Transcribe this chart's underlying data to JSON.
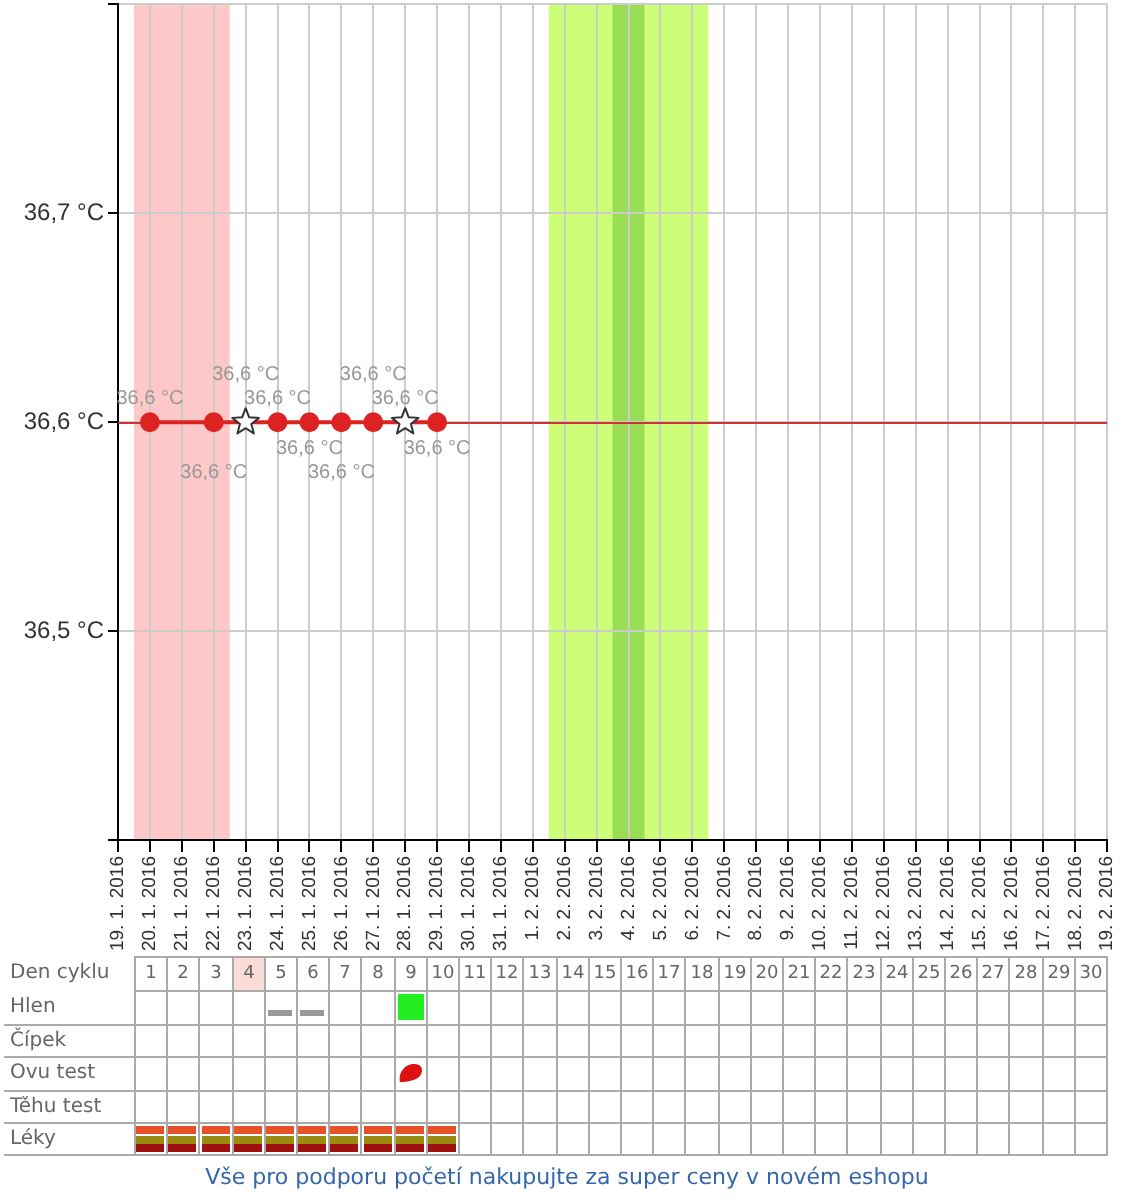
{
  "chart_data": [
    {
      "type": "line",
      "categories": [
        "19. 1. 2016",
        "20. 1. 2016",
        "21. 1. 2016",
        "22. 1. 2016",
        "23. 1. 2016",
        "24. 1. 2016",
        "25. 1. 2016",
        "26. 1. 2016",
        "27. 1. 2016",
        "28. 1. 2016",
        "29. 1. 2016",
        "30. 1. 2016",
        "31. 1. 2016",
        "1. 2. 2016",
        "2. 2. 2016",
        "3. 2. 2016",
        "4. 2. 2016",
        "5. 2. 2016",
        "6. 2. 2016",
        "7. 2. 2016",
        "8. 2. 2016",
        "9. 2. 2016",
        "10. 2. 2016",
        "11. 2. 2016",
        "12. 2. 2016",
        "13. 2. 2016",
        "14. 2. 2016",
        "15. 2. 2016",
        "16. 2. 2016",
        "17. 2. 2016",
        "18. 2. 2016",
        "19. 2. 2016"
      ],
      "series": [
        {
          "type": "line",
          "color": "#dd2222",
          "values": [
            null,
            36.6,
            null,
            36.6,
            null,
            36.6,
            36.6,
            36.6,
            36.6,
            null,
            36.6,
            null,
            null,
            null,
            null,
            null,
            null,
            null,
            null,
            null,
            null,
            null,
            null,
            null,
            null,
            null,
            null,
            null,
            null,
            null,
            null,
            null
          ],
          "value_labels": [
            null,
            "36,6 °C",
            null,
            "36,6 °C",
            null,
            "36,6 °C",
            "36,6 °C",
            "36,6 °C",
            "36,6 °C",
            null,
            "36,6 °C",
            null,
            null,
            null,
            null,
            null,
            null,
            null,
            null,
            null,
            null,
            null,
            null,
            null,
            null,
            null,
            null,
            null,
            null,
            null,
            null,
            null
          ]
        },
        {
          "type": "scatter",
          "marker": "star",
          "color": "#ffffff",
          "values": [
            null,
            null,
            null,
            null,
            36.6,
            null,
            null,
            null,
            null,
            36.6,
            null,
            null,
            null,
            null,
            null,
            null,
            null,
            null,
            null,
            null,
            null,
            null,
            null,
            null,
            null,
            null,
            null,
            null,
            null,
            null,
            null,
            null
          ],
          "value_labels": [
            null,
            null,
            null,
            null,
            "36,6 °C",
            null,
            null,
            null,
            null,
            "36,6 °C",
            null,
            null,
            null,
            null,
            null,
            null,
            null,
            null,
            null,
            null,
            null,
            null,
            null,
            null,
            null,
            null,
            null,
            null,
            null,
            null,
            null,
            null
          ]
        }
      ],
      "marker": "circle",
      "ylim": [
        36.4,
        36.8
      ],
      "yticks": [
        {
          "value": 36.4,
          "label": null
        },
        {
          "value": 36.5,
          "label": "36,5 °C"
        },
        {
          "value": 36.6,
          "label": "36,6 °C"
        },
        {
          "value": 36.7,
          "label": "36,7 °C"
        },
        {
          "value": 36.8,
          "label": null
        }
      ],
      "grid": true,
      "x2label": "Den cyklu",
      "x2lim": [
        0.5,
        30.5
      ],
      "x2ticks": [
        1,
        2,
        3,
        4,
        5,
        6,
        7,
        8,
        9,
        10,
        11,
        12,
        13,
        14,
        15,
        16,
        17,
        18,
        19,
        20,
        21,
        22,
        23,
        24,
        25,
        26,
        27,
        28,
        29,
        30
      ],
      "ref_lines": [
        {
          "axis": "y",
          "value": 36.6,
          "color": "#cc3333"
        }
      ],
      "bands": [
        {
          "axis": "x",
          "from": "20. 1. 2016",
          "to": "22. 1. 2016",
          "color": "#ffc8c8"
        },
        {
          "axis": "x",
          "from": "2. 2. 2016",
          "to": "6. 2. 2016",
          "color": "#ccff77"
        },
        {
          "axis": "x",
          "from": "4. 2. 2016",
          "to": "4. 2. 2016",
          "color": "#99dd55"
        }
      ]
    },
    {
      "type": "other",
      "y_categories": [
        "Hlen",
        "Čípek",
        "Ovu test",
        "Těhu test",
        "Léky"
      ],
      "annotations": [
        "Vše pro podporu početí nakupujte za super ceny v novém eshopu"
      ]
    }
  ]
}
